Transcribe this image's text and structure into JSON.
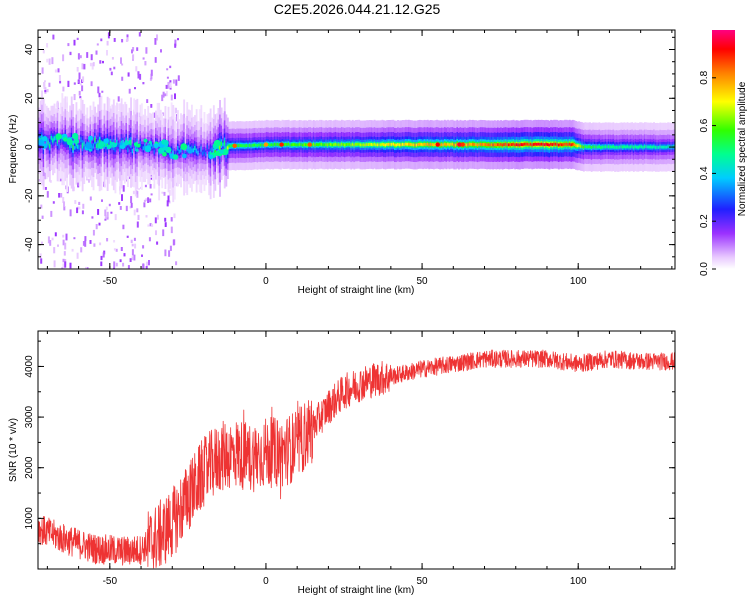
{
  "title": "C2E5.2026.044.21.12.G25",
  "chart_data": [
    {
      "type": "heatmap",
      "title": "C2E5.2026.044.21.12.G25",
      "xlabel": "Height of straight line (km)",
      "ylabel": "Frequency (Hz)",
      "xlim": [
        -73,
        131
      ],
      "ylim": [
        -50,
        48
      ],
      "xticks": [
        -50,
        0,
        50,
        100
      ],
      "xtick_labels": [
        "-50",
        "0",
        "50",
        "100"
      ],
      "yticks": [
        -40,
        -20,
        0,
        20,
        40
      ],
      "ytick_labels": [
        "-40",
        "-20",
        "0",
        "20",
        "40"
      ],
      "ridge": {
        "x": [
          -73,
          -60,
          -50,
          -40,
          -30,
          -20,
          -15,
          -10,
          0,
          10,
          20,
          30,
          40,
          50,
          60,
          70,
          80,
          90,
          98,
          102,
          110,
          120,
          131
        ],
        "center_hz": [
          2,
          1.5,
          1,
          0,
          -1,
          -2,
          0,
          0.5,
          1,
          1,
          1,
          1,
          1,
          1,
          1,
          1,
          1,
          1,
          1,
          0,
          0,
          0,
          0
        ],
        "peak_amplitude": [
          0.45,
          0.45,
          0.45,
          0.4,
          0.35,
          0.4,
          0.6,
          0.55,
          0.55,
          0.6,
          0.62,
          0.65,
          0.75,
          0.78,
          0.8,
          0.82,
          0.92,
          0.95,
          0.9,
          0.55,
          0.5,
          0.48,
          0.45
        ]
      },
      "colorbar": {
        "label": "Normalized spectral amplitude",
        "range": [
          0,
          1
        ],
        "ticks": [
          0,
          0.2,
          0.4,
          0.6,
          0.8
        ],
        "tick_labels": [
          "0.0",
          "0.2",
          "0.4",
          "0.6",
          "0.8"
        ]
      }
    },
    {
      "type": "line",
      "xlabel": "Height of straight line (km)",
      "ylabel": "SNR (10 * v/v)",
      "xlim": [
        -73,
        131
      ],
      "ylim": [
        0,
        4700
      ],
      "xticks": [
        -50,
        0,
        50,
        100
      ],
      "xtick_labels": [
        "-50",
        "0",
        "50",
        "100"
      ],
      "yticks": [
        1000,
        2000,
        3000,
        4000
      ],
      "ytick_labels": [
        "1000",
        "2000",
        "3000",
        "4000"
      ],
      "color": "#ee3333",
      "series": [
        {
          "name": "SNR",
          "x": [
            -73,
            -65,
            -55,
            -45,
            -40,
            -35,
            -30,
            -25,
            -20,
            -15,
            -10,
            -5,
            0,
            5,
            10,
            15,
            20,
            25,
            30,
            35,
            40,
            50,
            60,
            70,
            80,
            90,
            100,
            110,
            120,
            131
          ],
          "values": [
            800,
            600,
            400,
            350,
            380,
            600,
            900,
            1400,
            1900,
            2200,
            2300,
            2200,
            2300,
            2300,
            2450,
            2800,
            3200,
            3500,
            3650,
            3750,
            3800,
            3950,
            4050,
            4150,
            4150,
            4150,
            4050,
            4150,
            4100,
            4100
          ]
        }
      ]
    }
  ]
}
